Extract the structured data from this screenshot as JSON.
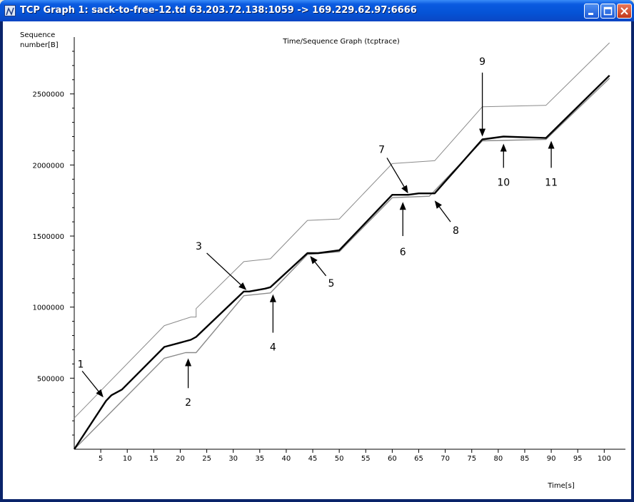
{
  "window": {
    "title": "TCP Graph 1: sack-to-free-12.td 63.203.72.138:1059 -> 169.229.62.97:6666",
    "minimize_icon": "minimize-icon",
    "maximize_icon": "maximize-icon",
    "close_icon": "close-icon"
  },
  "chart_data": {
    "type": "line",
    "title": "Time/Sequence Graph (tcptrace)",
    "ylabel_line1": "Sequence",
    "ylabel_line2": "number[B]",
    "xlabel": "Time[s]",
    "xlim": [
      0,
      104
    ],
    "ylim": [
      0,
      2900000
    ],
    "x_ticks": [
      5,
      10,
      15,
      20,
      25,
      30,
      35,
      40,
      45,
      50,
      55,
      60,
      65,
      70,
      75,
      80,
      85,
      90,
      95,
      100
    ],
    "y_ticks": [
      500000,
      1000000,
      1500000,
      2000000,
      2500000
    ],
    "series": [
      {
        "role": "upper",
        "points": [
          [
            0,
            220000
          ],
          [
            17,
            870000
          ],
          [
            22,
            930000
          ],
          [
            23,
            930000
          ],
          [
            23,
            990000
          ],
          [
            32,
            1320000
          ],
          [
            37,
            1340000
          ],
          [
            44,
            1610000
          ],
          [
            50,
            1620000
          ],
          [
            60,
            2010000
          ],
          [
            68,
            2030000
          ],
          [
            77,
            2410000
          ],
          [
            89,
            2420000
          ],
          [
            101,
            2860000
          ]
        ]
      },
      {
        "role": "data",
        "points": [
          [
            0,
            0
          ],
          [
            6,
            340000
          ],
          [
            7,
            380000
          ],
          [
            9,
            420000
          ],
          [
            17,
            720000
          ],
          [
            21,
            760000
          ],
          [
            22,
            770000
          ],
          [
            23,
            790000
          ],
          [
            32,
            1110000
          ],
          [
            33,
            1110000
          ],
          [
            36,
            1130000
          ],
          [
            37,
            1140000
          ],
          [
            44,
            1380000
          ],
          [
            46,
            1380000
          ],
          [
            50,
            1400000
          ],
          [
            60,
            1790000
          ],
          [
            63,
            1790000
          ],
          [
            65,
            1800000
          ],
          [
            68,
            1800000
          ],
          [
            77,
            2180000
          ],
          [
            81,
            2200000
          ],
          [
            89,
            2190000
          ],
          [
            101,
            2630000
          ]
        ]
      },
      {
        "role": "ack",
        "points": [
          [
            0,
            0
          ],
          [
            17,
            640000
          ],
          [
            21,
            680000
          ],
          [
            23,
            680000
          ],
          [
            32,
            1080000
          ],
          [
            37,
            1100000
          ],
          [
            44,
            1370000
          ],
          [
            50,
            1390000
          ],
          [
            60,
            1770000
          ],
          [
            67,
            1780000
          ],
          [
            77,
            2170000
          ],
          [
            89,
            2180000
          ],
          [
            101,
            2610000
          ]
        ]
      }
    ],
    "annotations": [
      {
        "label": "1",
        "arrow_from": [
          1.5,
          550000
        ],
        "arrow_to": [
          5.5,
          365000
        ],
        "label_at": [
          1.2,
          600000
        ]
      },
      {
        "label": "2",
        "arrow_from": [
          21.5,
          430000
        ],
        "arrow_to": [
          21.5,
          640000
        ],
        "label_at": [
          21.5,
          330000
        ]
      },
      {
        "label": "3",
        "arrow_from": [
          25,
          1380000
        ],
        "arrow_to": [
          32.5,
          1120000
        ],
        "label_at": [
          23.5,
          1430000
        ]
      },
      {
        "label": "4",
        "arrow_from": [
          37.5,
          820000
        ],
        "arrow_to": [
          37.5,
          1090000
        ],
        "label_at": [
          37.5,
          720000
        ]
      },
      {
        "label": "5",
        "arrow_from": [
          47.5,
          1220000
        ],
        "arrow_to": [
          44.5,
          1360000
        ],
        "label_at": [
          48.5,
          1170000
        ]
      },
      {
        "label": "6",
        "arrow_from": [
          62,
          1500000
        ],
        "arrow_to": [
          62,
          1740000
        ],
        "label_at": [
          62,
          1390000
        ]
      },
      {
        "label": "7",
        "arrow_from": [
          59,
          2050000
        ],
        "arrow_to": [
          63,
          1800000
        ],
        "label_at": [
          58,
          2110000
        ]
      },
      {
        "label": "8",
        "arrow_from": [
          71,
          1600000
        ],
        "arrow_to": [
          68,
          1750000
        ],
        "label_at": [
          72,
          1540000
        ]
      },
      {
        "label": "9",
        "arrow_from": [
          77,
          2650000
        ],
        "arrow_to": [
          77,
          2200000
        ],
        "label_at": [
          77,
          2730000
        ]
      },
      {
        "label": "10",
        "arrow_from": [
          81,
          1980000
        ],
        "arrow_to": [
          81,
          2150000
        ],
        "label_at": [
          81,
          1880000
        ]
      },
      {
        "label": "11",
        "arrow_from": [
          90,
          1980000
        ],
        "arrow_to": [
          90,
          2170000
        ],
        "label_at": [
          90,
          1880000
        ]
      }
    ]
  }
}
